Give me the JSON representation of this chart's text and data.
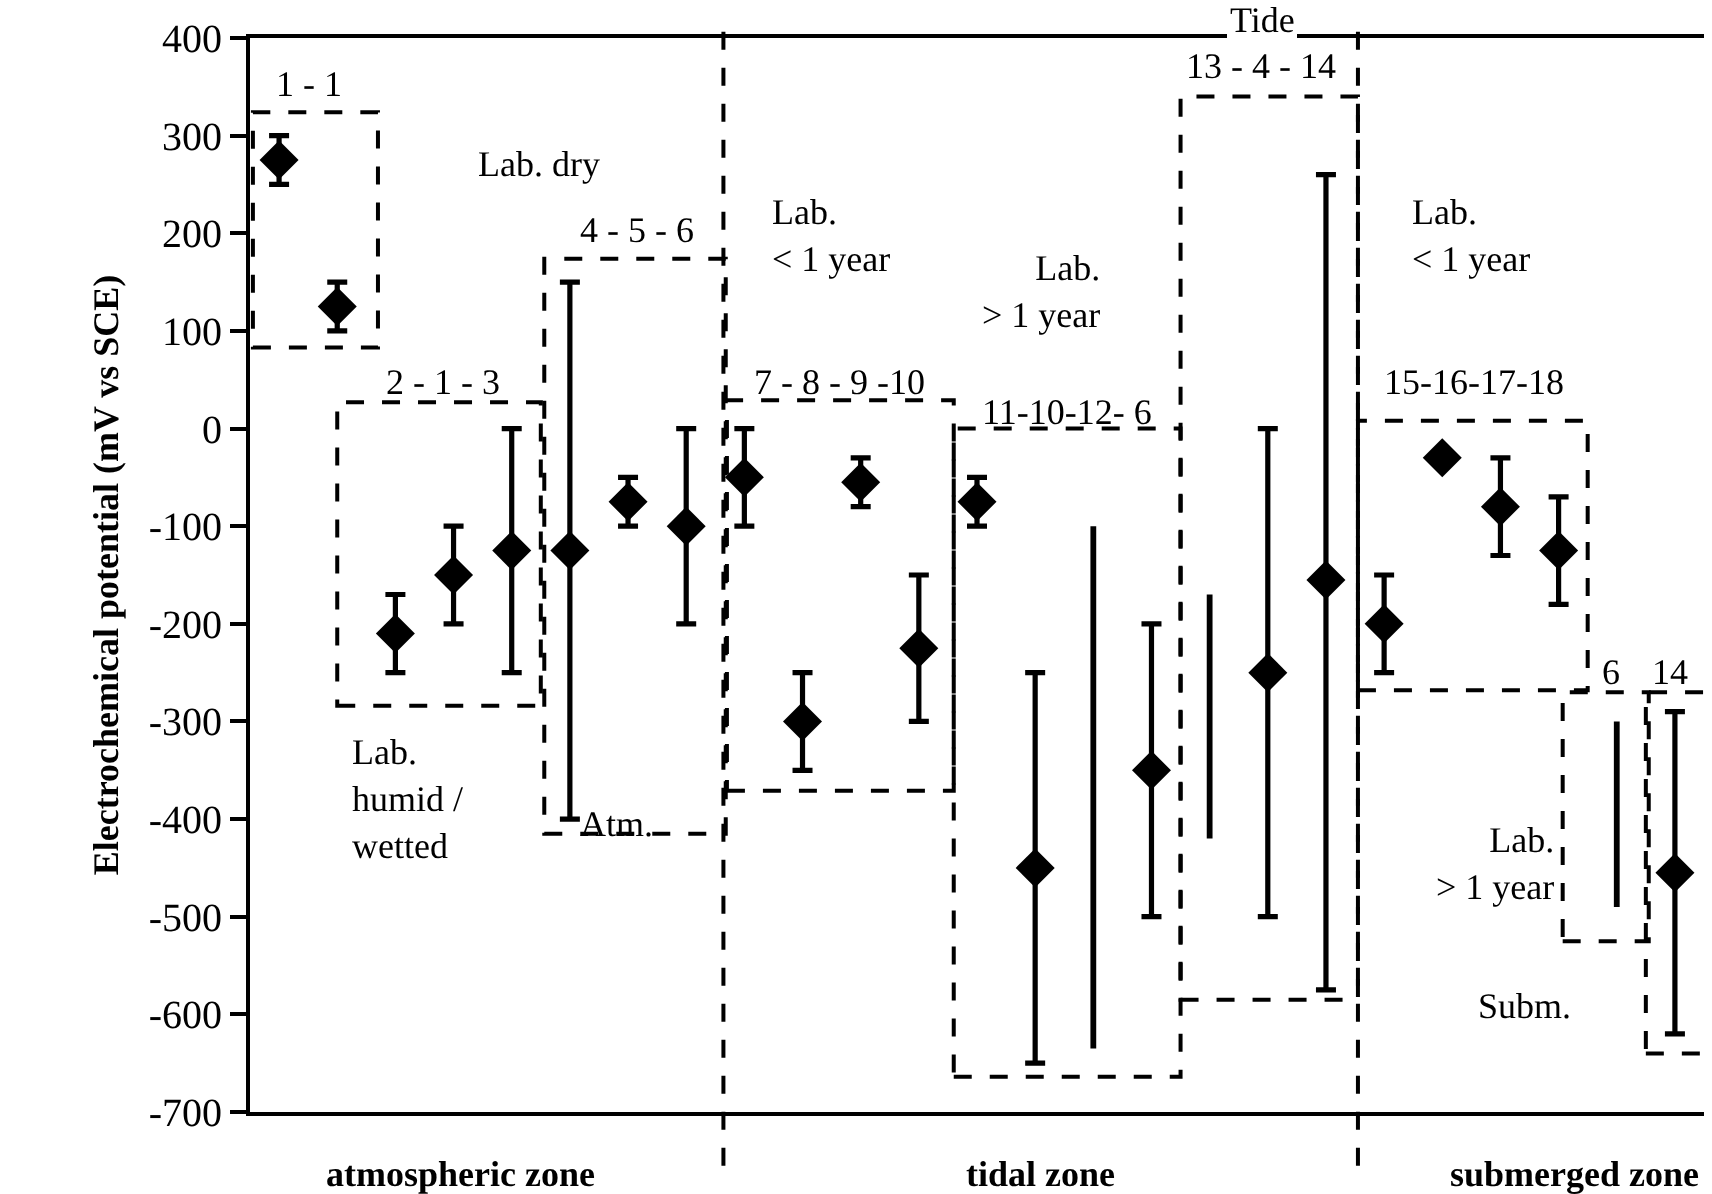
{
  "chart_data": {
    "type": "scatter",
    "ylabel": "Electrochemical potential (mV vs SCE)",
    "categories": [
      null,
      null,
      null,
      null,
      null,
      null,
      null,
      null,
      null,
      null,
      null,
      null,
      null,
      null,
      null,
      null,
      null,
      null,
      null,
      null,
      null,
      null,
      null,
      null,
      null
    ],
    "series": [
      {
        "color": "#000000",
        "marker": "diamond",
        "values": [
          275,
          125,
          -210,
          -150,
          -125,
          -125,
          -75,
          -100,
          -50,
          -300,
          -55,
          -225,
          -75,
          -450,
          null,
          -350,
          null,
          -250,
          -155,
          -200,
          -30,
          -80,
          -125,
          null,
          -455
        ],
        "errors": [
          [
            250,
            300
          ],
          [
            100,
            150
          ],
          [
            -250,
            -170
          ],
          [
            -200,
            -100
          ],
          [
            -250,
            0
          ],
          [
            -400,
            150
          ],
          [
            -100,
            -50
          ],
          [
            -200,
            0
          ],
          [
            -100,
            0
          ],
          [
            -350,
            -250
          ],
          [
            -80,
            -30
          ],
          [
            -300,
            -150
          ],
          [
            -100,
            -50
          ],
          [
            -650,
            -250
          ],
          null,
          [
            -500,
            -200
          ],
          null,
          [
            -500,
            0
          ],
          [
            -575,
            260
          ],
          [
            -250,
            -150
          ],
          null,
          [
            -130,
            -30
          ],
          [
            -180,
            -70
          ],
          null,
          [
            -620,
            -290
          ]
        ]
      },
      {
        "type": "bar",
        "color": "#000000",
        "values": [
          null,
          null,
          null,
          null,
          null,
          null,
          null,
          null,
          null,
          null,
          null,
          null,
          null,
          null,
          535,
          null,
          250,
          null,
          null,
          null,
          null,
          null,
          null,
          190,
          null
        ],
        "base": [
          null,
          null,
          null,
          null,
          null,
          null,
          null,
          null,
          null,
          null,
          null,
          null,
          null,
          null,
          -635,
          null,
          -420,
          null,
          null,
          null,
          null,
          null,
          null,
          -490,
          null
        ]
      }
    ],
    "ylim": [
      -700,
      400
    ],
    "yticks": [
      -700,
      -600,
      -500,
      -400,
      -300,
      -200,
      -100,
      0,
      100,
      200,
      300,
      400
    ],
    "grid": false,
    "tick_labels": "y",
    "annotations": [
      "1 - 1",
      "Lab. dry",
      "2 - 1 - 3",
      "Lab.\nhumid /\nwetted",
      "4 - 5 - 6",
      "Atm.",
      "Lab.\n< 1 year",
      "7 - 8 - 9 -10",
      "Lab.\n> 1 year",
      "11-10-12- 6",
      "Tide",
      "13 - 4 - 14",
      "Lab.\n< 1 year",
      "15-16-17-18",
      "6",
      "14",
      "Lab.\n> 1 year",
      "Subm.",
      "atmospheric zone",
      "tidal zone",
      "submerged zone"
    ]
  }
}
